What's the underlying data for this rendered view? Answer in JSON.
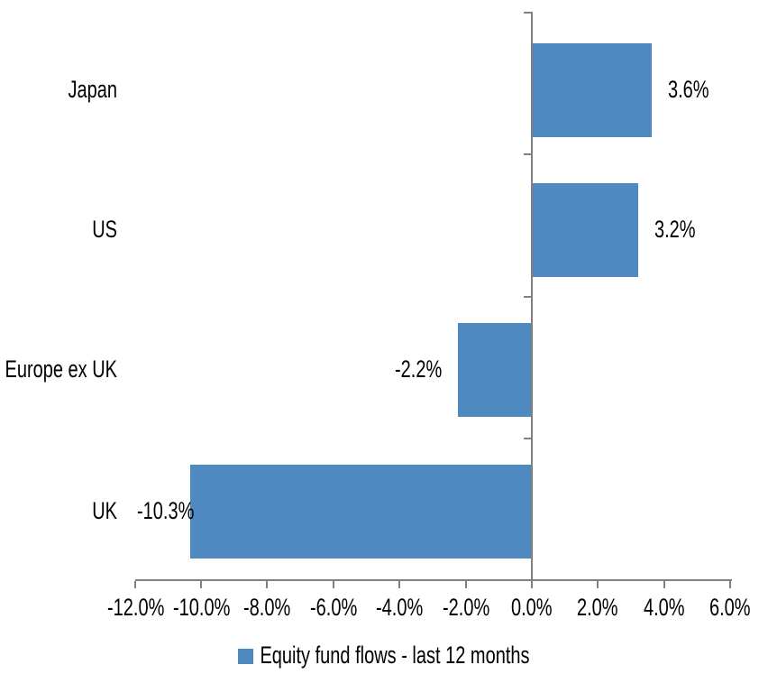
{
  "chart_data": {
    "type": "bar",
    "orientation": "horizontal",
    "title": "",
    "categories": [
      "Japan",
      "US",
      "Europe ex UK",
      "UK"
    ],
    "series": [
      {
        "name": "Equity fund flows - last 12 months",
        "values": [
          3.6,
          3.2,
          -2.2,
          -10.3
        ],
        "data_labels": [
          "3.6%",
          "3.2%",
          "-2.2%",
          "-10.3%"
        ],
        "color": "#4E8ABF"
      }
    ],
    "data_label_position": "outside-end",
    "xlim": [
      -12,
      6
    ],
    "x_tick_step": 2,
    "x_ticks": [
      -12,
      -10,
      -8,
      -6,
      -4,
      -2,
      0,
      2,
      4,
      6
    ],
    "x_tick_labels": [
      "-12.0%",
      "-10.0%",
      "-8.0%",
      "-6.0%",
      "-4.0%",
      "-2.0%",
      "0.0%",
      "2.0%",
      "4.0%",
      "6.0%"
    ],
    "grid": false,
    "legend_position": "bottom",
    "axis_color": "#808080",
    "text_color": "#000000",
    "background_color": "#FFFFFF"
  },
  "legend": {
    "label": "Equity fund flows - last 12 months",
    "swatch_color": "#4E8ABF"
  }
}
